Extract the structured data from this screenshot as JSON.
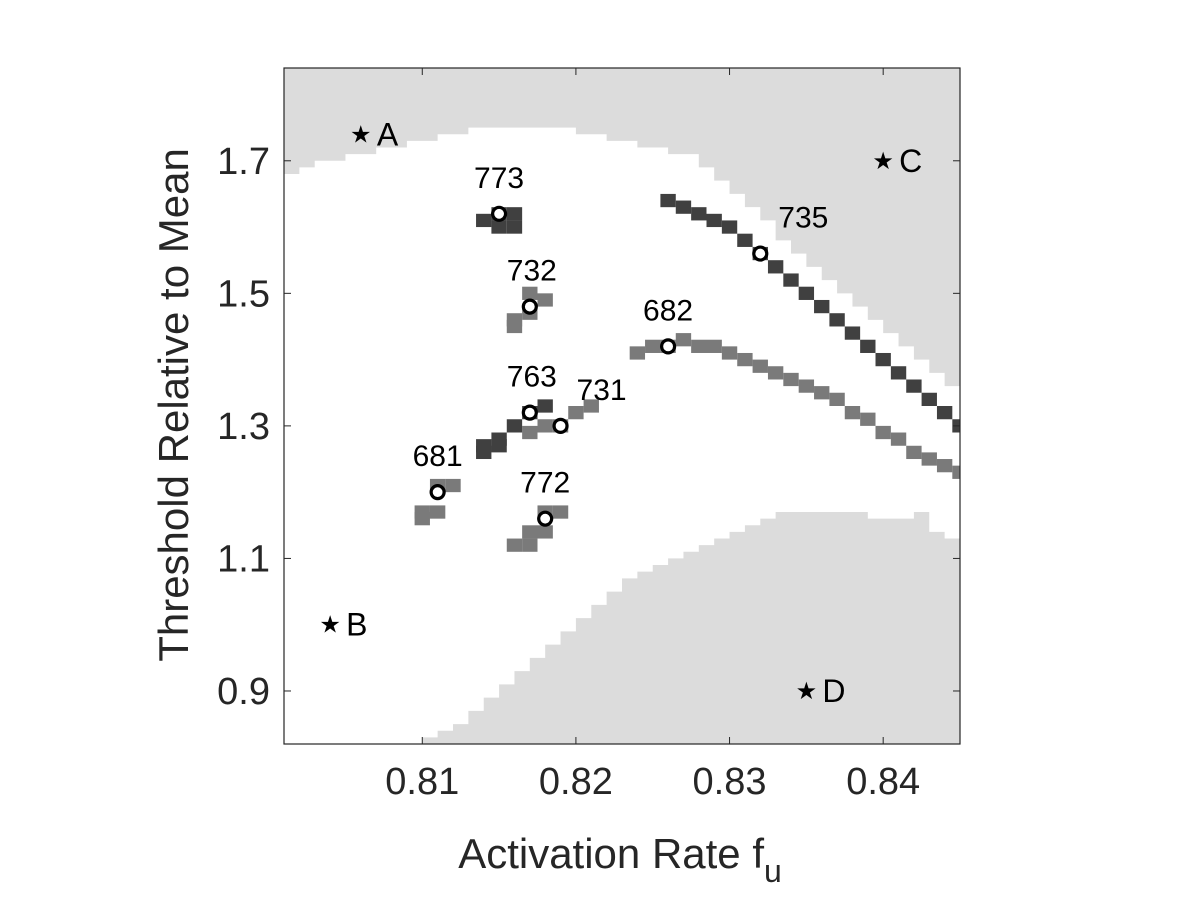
{
  "chart_data": {
    "type": "heatmap",
    "xlabel": "Activation Rate f",
    "xlabel_subscript": "u",
    "ylabel": "Threshold Relative to Mean",
    "xlim": [
      0.801,
      0.845
    ],
    "ylim": [
      0.82,
      1.84
    ],
    "xticks": [
      0.81,
      0.82,
      0.83,
      0.84
    ],
    "xtick_labels": [
      "0.81",
      "0.82",
      "0.83",
      "0.84"
    ],
    "yticks": [
      0.9,
      1.1,
      1.3,
      1.5,
      1.7
    ],
    "ytick_labels": [
      "0.9",
      "1.1",
      "1.3",
      "1.5",
      "1.7"
    ],
    "grid": false,
    "colors": {
      "background_region": "#dcdcdc",
      "open_region": "#ffffff",
      "dark_band": "#404040",
      "mid_band": "#7a7a7a",
      "axis": "#262626"
    },
    "upper_region_boundary": [
      [
        0.801,
        1.68
      ],
      [
        0.802,
        1.69
      ],
      [
        0.803,
        1.7
      ],
      [
        0.805,
        1.71
      ],
      [
        0.807,
        1.72
      ],
      [
        0.809,
        1.73
      ],
      [
        0.811,
        1.74
      ],
      [
        0.813,
        1.75
      ],
      [
        0.818,
        1.75
      ],
      [
        0.82,
        1.74
      ],
      [
        0.822,
        1.73
      ],
      [
        0.824,
        1.72
      ],
      [
        0.826,
        1.71
      ],
      [
        0.828,
        1.69
      ],
      [
        0.829,
        1.67
      ],
      [
        0.83,
        1.65
      ],
      [
        0.831,
        1.63
      ],
      [
        0.832,
        1.61
      ],
      [
        0.833,
        1.58
      ],
      [
        0.834,
        1.56
      ],
      [
        0.835,
        1.54
      ],
      [
        0.836,
        1.52
      ],
      [
        0.837,
        1.5
      ],
      [
        0.838,
        1.48
      ],
      [
        0.839,
        1.46
      ],
      [
        0.84,
        1.44
      ],
      [
        0.841,
        1.42
      ],
      [
        0.842,
        1.4
      ],
      [
        0.843,
        1.38
      ],
      [
        0.844,
        1.36
      ],
      [
        0.845,
        1.34
      ]
    ],
    "lower_region_boundary": [
      [
        0.8085,
        0.82
      ],
      [
        0.81,
        0.83
      ],
      [
        0.811,
        0.84
      ],
      [
        0.812,
        0.85
      ],
      [
        0.813,
        0.87
      ],
      [
        0.814,
        0.89
      ],
      [
        0.815,
        0.91
      ],
      [
        0.816,
        0.93
      ],
      [
        0.817,
        0.95
      ],
      [
        0.818,
        0.97
      ],
      [
        0.819,
        0.99
      ],
      [
        0.82,
        1.01
      ],
      [
        0.821,
        1.03
      ],
      [
        0.822,
        1.05
      ],
      [
        0.823,
        1.07
      ],
      [
        0.824,
        1.08
      ],
      [
        0.825,
        1.09
      ],
      [
        0.826,
        1.1
      ],
      [
        0.827,
        1.11
      ],
      [
        0.828,
        1.12
      ],
      [
        0.829,
        1.13
      ],
      [
        0.83,
        1.14
      ],
      [
        0.831,
        1.15
      ],
      [
        0.832,
        1.16
      ],
      [
        0.833,
        1.17
      ],
      [
        0.838,
        1.17
      ],
      [
        0.839,
        1.16
      ],
      [
        0.841,
        1.16
      ],
      [
        0.842,
        1.17
      ],
      [
        0.843,
        1.14
      ],
      [
        0.844,
        1.13
      ],
      [
        0.845,
        1.13
      ]
    ],
    "dark_band_cells": [
      [
        0.826,
        1.64
      ],
      [
        0.827,
        1.63
      ],
      [
        0.828,
        1.62
      ],
      [
        0.829,
        1.61
      ],
      [
        0.83,
        1.6
      ],
      [
        0.831,
        1.58
      ],
      [
        0.832,
        1.56
      ],
      [
        0.833,
        1.54
      ],
      [
        0.834,
        1.52
      ],
      [
        0.835,
        1.5
      ],
      [
        0.836,
        1.48
      ],
      [
        0.837,
        1.46
      ],
      [
        0.838,
        1.44
      ],
      [
        0.839,
        1.42
      ],
      [
        0.84,
        1.4
      ],
      [
        0.841,
        1.38
      ],
      [
        0.842,
        1.36
      ],
      [
        0.843,
        1.34
      ],
      [
        0.844,
        1.32
      ],
      [
        0.845,
        1.3
      ],
      [
        0.815,
        1.62
      ],
      [
        0.816,
        1.62
      ],
      [
        0.815,
        1.6
      ],
      [
        0.816,
        1.6
      ],
      [
        0.814,
        1.61
      ],
      [
        0.814,
        1.27
      ],
      [
        0.815,
        1.28
      ],
      [
        0.816,
        1.3
      ],
      [
        0.817,
        1.32
      ],
      [
        0.818,
        1.33
      ],
      [
        0.814,
        1.26
      ],
      [
        0.815,
        1.27
      ]
    ],
    "mid_band_cells": [
      [
        0.824,
        1.41
      ],
      [
        0.825,
        1.42
      ],
      [
        0.826,
        1.42
      ],
      [
        0.827,
        1.43
      ],
      [
        0.828,
        1.42
      ],
      [
        0.829,
        1.42
      ],
      [
        0.83,
        1.41
      ],
      [
        0.831,
        1.4
      ],
      [
        0.832,
        1.39
      ],
      [
        0.833,
        1.38
      ],
      [
        0.834,
        1.37
      ],
      [
        0.835,
        1.36
      ],
      [
        0.836,
        1.35
      ],
      [
        0.837,
        1.34
      ],
      [
        0.838,
        1.32
      ],
      [
        0.839,
        1.31
      ],
      [
        0.84,
        1.29
      ],
      [
        0.841,
        1.28
      ],
      [
        0.842,
        1.26
      ],
      [
        0.843,
        1.25
      ],
      [
        0.844,
        1.24
      ],
      [
        0.845,
        1.23
      ],
      [
        0.817,
        1.5
      ],
      [
        0.818,
        1.49
      ],
      [
        0.816,
        1.46
      ],
      [
        0.817,
        1.47
      ],
      [
        0.816,
        1.45
      ],
      [
        0.818,
        1.3
      ],
      [
        0.819,
        1.3
      ],
      [
        0.82,
        1.32
      ],
      [
        0.821,
        1.33
      ],
      [
        0.817,
        1.29
      ],
      [
        0.811,
        1.21
      ],
      [
        0.812,
        1.21
      ],
      [
        0.81,
        1.17
      ],
      [
        0.811,
        1.17
      ],
      [
        0.81,
        1.16
      ],
      [
        0.818,
        1.17
      ],
      [
        0.819,
        1.17
      ],
      [
        0.817,
        1.14
      ],
      [
        0.818,
        1.14
      ],
      [
        0.817,
        1.12
      ],
      [
        0.816,
        1.12
      ]
    ],
    "cell_size": {
      "dx": 0.001,
      "dy": 0.02
    },
    "labeled_points": [
      {
        "label": "773",
        "x": 0.815,
        "y": 1.62
      },
      {
        "label": "732",
        "x": 0.817,
        "y": 1.48
      },
      {
        "label": "735",
        "x": 0.832,
        "y": 1.56
      },
      {
        "label": "682",
        "x": 0.826,
        "y": 1.42
      },
      {
        "label": "763",
        "x": 0.817,
        "y": 1.32
      },
      {
        "label": "731",
        "x": 0.819,
        "y": 1.3
      },
      {
        "label": "681",
        "x": 0.811,
        "y": 1.2
      },
      {
        "label": "772",
        "x": 0.818,
        "y": 1.16
      }
    ],
    "star_points": [
      {
        "label": "A",
        "x": 0.806,
        "y": 1.74
      },
      {
        "label": "B",
        "x": 0.804,
        "y": 1.0
      },
      {
        "label": "C",
        "x": 0.84,
        "y": 1.7
      },
      {
        "label": "D",
        "x": 0.835,
        "y": 0.9
      }
    ]
  }
}
